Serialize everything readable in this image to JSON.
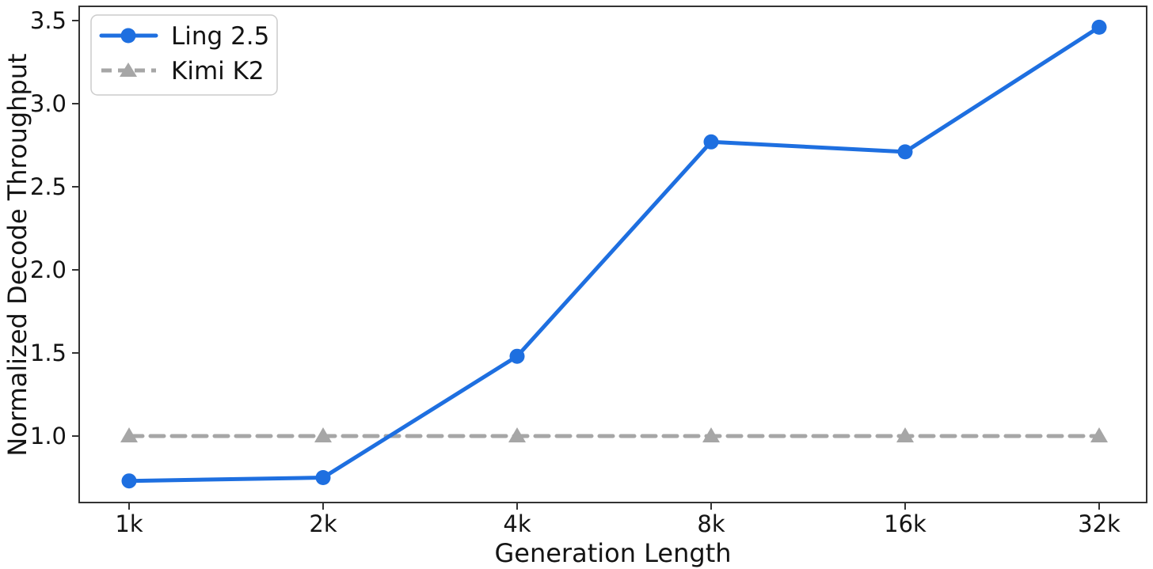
{
  "figure": {
    "background": "#ffffff",
    "axis_color": "#333333",
    "tick_label_color": "#141414"
  },
  "chart_data": {
    "type": "line",
    "title": "",
    "xlabel": "Generation Length",
    "ylabel": "Normalized Decode Throughput",
    "categories": [
      "1k",
      "2k",
      "4k",
      "8k",
      "16k",
      "32k"
    ],
    "series": [
      {
        "name": "Ling 2.5",
        "color": "#1e6fe0",
        "line_style": "solid",
        "marker": "circle",
        "values": [
          0.73,
          0.75,
          1.48,
          2.77,
          2.71,
          3.46
        ]
      },
      {
        "name": "Kimi K2",
        "color": "#a6a6a6",
        "line_style": "dashed",
        "marker": "triangle",
        "values": [
          1.0,
          1.0,
          1.0,
          1.0,
          1.0,
          1.0
        ]
      }
    ],
    "yticks": [
      "1.0",
      "1.5",
      "2.0",
      "2.5",
      "3.0",
      "3.5"
    ],
    "ylim": [
      0.6,
      3.59
    ],
    "grid": false,
    "legend_position": "upper left"
  }
}
